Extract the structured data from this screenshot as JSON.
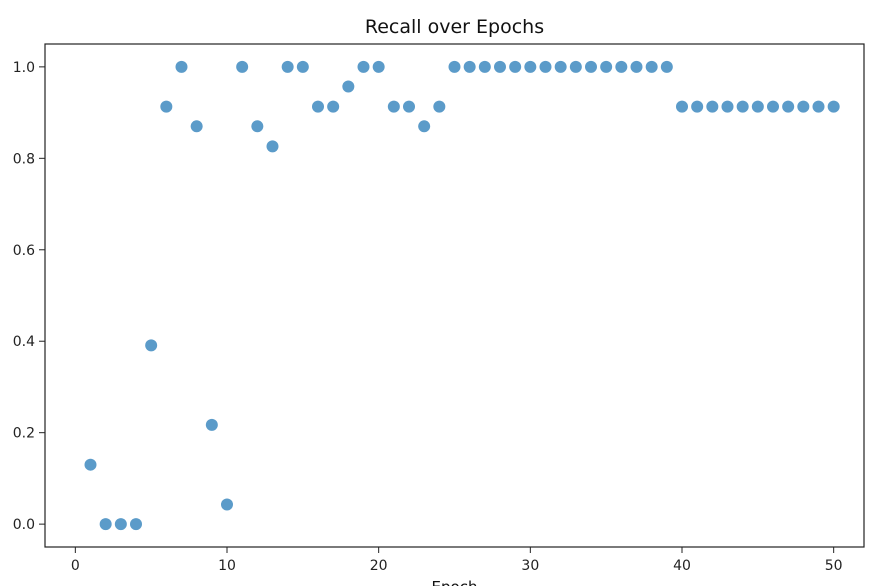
{
  "chart_data": {
    "type": "scatter",
    "title": "Recall over Epochs",
    "xlabel": "Epoch",
    "ylabel": "",
    "xlim": [
      -2,
      52
    ],
    "ylim": [
      -0.05,
      1.05
    ],
    "x_ticks": [
      0,
      10,
      20,
      30,
      40,
      50
    ],
    "y_ticks": [
      0.0,
      0.2,
      0.4,
      0.6,
      0.8,
      1.0
    ],
    "grid": false,
    "marker_color": "#5b9bc9",
    "series": [
      {
        "x": [
          1,
          2,
          3,
          4,
          5,
          6,
          7,
          8,
          9,
          10,
          11,
          12,
          13,
          14,
          15,
          16,
          17,
          18,
          19,
          20,
          21,
          22,
          23,
          24,
          25,
          26,
          27,
          28,
          29,
          30,
          31,
          32,
          33,
          34,
          35,
          36,
          37,
          38,
          39,
          40,
          41,
          42,
          43,
          44,
          45,
          46,
          47,
          48,
          49,
          50
        ],
        "y": [
          0.13,
          0.0,
          0.0,
          0.0,
          0.391,
          0.913,
          1.0,
          0.87,
          0.217,
          0.043,
          1.0,
          0.87,
          0.826,
          1.0,
          1.0,
          0.913,
          0.913,
          0.957,
          1.0,
          1.0,
          0.913,
          0.913,
          0.87,
          0.913,
          1.0,
          1.0,
          1.0,
          1.0,
          1.0,
          1.0,
          1.0,
          1.0,
          1.0,
          1.0,
          1.0,
          1.0,
          1.0,
          1.0,
          1.0,
          0.913,
          0.913,
          0.913,
          0.913,
          0.913,
          0.913,
          0.913,
          0.913,
          0.913,
          0.913,
          0.913
        ]
      }
    ]
  }
}
